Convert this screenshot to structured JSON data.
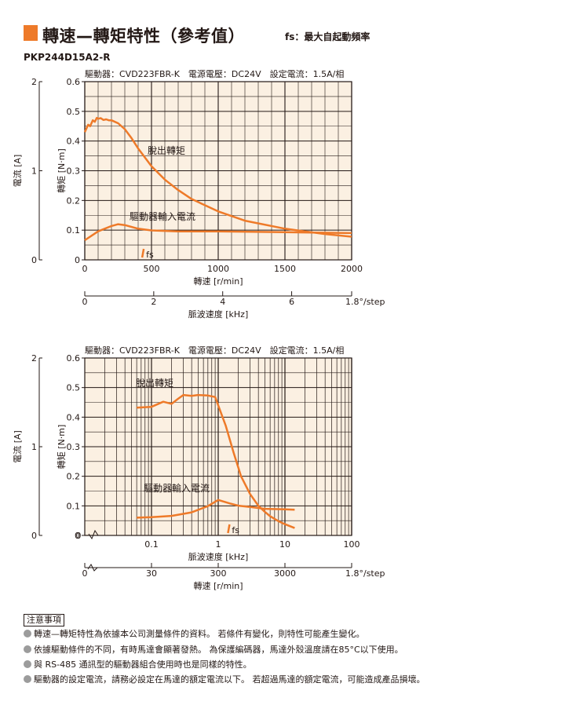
{
  "title": "轉速—轉矩特性（參考值）",
  "title_note": "fs：最大自起動頻率",
  "model": "PKP244D15A2-R",
  "colors": {
    "accent": "#ee7a29",
    "plot_bg": "#fbf0e2",
    "curve": "#ee7a29",
    "grid": "#231815"
  },
  "chart_data": [
    {
      "type": "line",
      "condition": "驅動器：CVD223FBR-K　電源電壓：DC24V　設定電流：1.5A/相",
      "xlabel": "轉速 [r/min]",
      "ylabel": "轉矩 [N·m]",
      "y2label": "電流 [A]",
      "x2label": "脈波速度 [kHz]",
      "x_scale": "linear",
      "xlim": [
        0,
        2000
      ],
      "ylim": [
        0,
        0.6
      ],
      "y2lim": [
        0,
        2
      ],
      "xticks": [
        "0",
        "500",
        "1000",
        "1500",
        "2000"
      ],
      "yticks": [
        "0",
        "0.1",
        "0.2",
        "0.3",
        "0.4",
        "0.5",
        "0.6"
      ],
      "y2ticks": [
        "0",
        "1",
        "2"
      ],
      "x2ticks": [
        "0",
        "2",
        "4",
        "6"
      ],
      "x2unit": "1.8°/step",
      "fs_label": "fs",
      "fs_x": 430,
      "series": [
        {
          "name": "脫出轉矩",
          "x": [
            0,
            25,
            40,
            60,
            75,
            90,
            100,
            120,
            140,
            160,
            180,
            200,
            250,
            300,
            350,
            400,
            500,
            600,
            700,
            800,
            1000,
            1200,
            1500,
            1800,
            2000
          ],
          "y": [
            0.43,
            0.455,
            0.45,
            0.47,
            0.465,
            0.478,
            0.475,
            0.477,
            0.471,
            0.473,
            0.47,
            0.47,
            0.46,
            0.44,
            0.41,
            0.375,
            0.315,
            0.27,
            0.235,
            0.205,
            0.163,
            0.132,
            0.105,
            0.087,
            0.078
          ]
        },
        {
          "name": "驅動器輸入電流",
          "x": [
            0,
            100,
            200,
            250,
            300,
            400,
            500,
            700,
            1000,
            1500,
            2000
          ],
          "y": [
            0.22,
            0.32,
            0.38,
            0.4,
            0.39,
            0.35,
            0.33,
            0.32,
            0.32,
            0.31,
            0.3
          ],
          "axis": "y2"
        }
      ]
    },
    {
      "type": "line",
      "condition": "驅動器：CVD223FBR-K　電源電壓：DC24V　設定電流：1.5A/相",
      "xlabel": "脈波速度 [kHz]",
      "ylabel": "轉矩 [N·m]",
      "y2label": "電流 [A]",
      "x2label": "轉速 [r/min]",
      "x_scale": "log",
      "xlim": [
        0.01,
        100
      ],
      "ylim": [
        0,
        0.6
      ],
      "y2lim": [
        0,
        2
      ],
      "xticks": [
        "0",
        "0.1",
        "1",
        "10",
        "100"
      ],
      "yticks": [
        "0",
        "0.1",
        "0.2",
        "0.3",
        "0.4",
        "0.5",
        "0.6"
      ],
      "y2ticks": [
        "0",
        "1",
        "2"
      ],
      "x2ticks": [
        "0",
        "30",
        "300",
        "3000"
      ],
      "x2unit": "1.8°/step",
      "fs_label": "fs",
      "fs_x": 1.4,
      "series": [
        {
          "name": "脫出轉矩",
          "x": [
            0.06,
            0.1,
            0.15,
            0.2,
            0.25,
            0.3,
            0.4,
            0.5,
            0.7,
            0.9,
            1,
            1.3,
            1.7,
            2.2,
            3,
            4,
            5,
            6,
            8,
            10,
            14
          ],
          "y": [
            0.432,
            0.435,
            0.452,
            0.445,
            0.462,
            0.475,
            0.472,
            0.475,
            0.473,
            0.468,
            0.44,
            0.37,
            0.28,
            0.2,
            0.14,
            0.1,
            0.08,
            0.065,
            0.048,
            0.038,
            0.025
          ]
        },
        {
          "name": "驅動器輸入電流",
          "x": [
            0.06,
            0.1,
            0.2,
            0.4,
            0.7,
            1,
            1.5,
            2,
            3,
            5,
            10,
            14
          ],
          "y": [
            0.2,
            0.205,
            0.22,
            0.26,
            0.33,
            0.4,
            0.36,
            0.335,
            0.32,
            0.3,
            0.295,
            0.29
          ],
          "axis": "y2"
        }
      ]
    }
  ],
  "notes": {
    "title": "注意事項",
    "items": [
      "轉速—轉矩特性為依據本公司測量條件的資料。 若條件有變化，則特性可能產生變化。",
      "依據驅動條件的不同，有時馬達會顯著發熱。 為保護編碼器，馬達外殼溫度請在85°C以下使用。",
      "與 RS-485 通訊型的驅動器組合使用時也是同樣的特性。",
      "驅動器的設定電流，請務必設定在馬達的額定電流以下。 若超過馬達的額定電流，可能造成產品損壞。"
    ]
  }
}
